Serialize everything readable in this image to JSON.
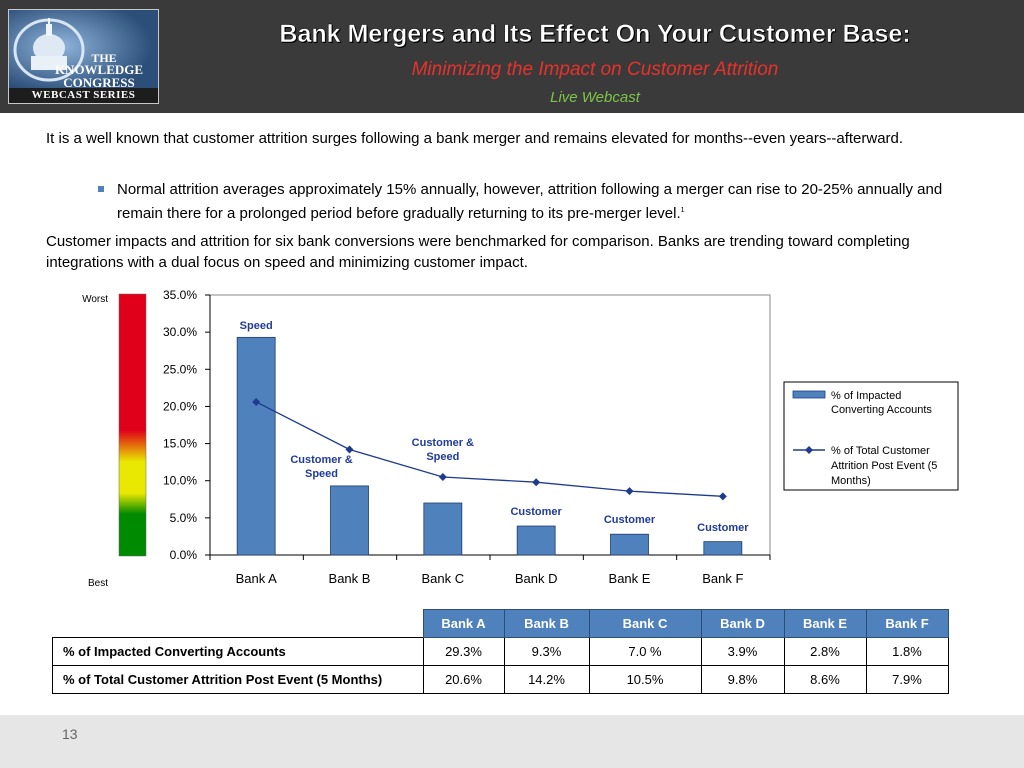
{
  "header": {
    "logo_text_line1": "THE",
    "logo_text_line2": "KNOWLEDGE",
    "logo_text_line3": "CONGRESS",
    "logo_series": "WEBCAST SERIES",
    "title": "Bank Mergers and Its Effect On Your Customer Base:",
    "subtitle": "Minimizing the Impact on Customer Attrition",
    "live": "Live Webcast",
    "colors": {
      "background": "#3a3a3a",
      "subtitle": "#e8312b",
      "live": "#7ec34a"
    }
  },
  "body": {
    "para1": "It is a well known that  customer attrition surges following a bank merger and remains elevated for months--even years--afterward.",
    "bullet1": "Normal attrition averages approximately 15% annually, however, attrition following a merger can rise to 20-25% annually and remain there for a prolonged period before gradually returning to its pre-merger level.",
    "bullet1_sup": "1",
    "para2": "Customer impacts and attrition for six bank conversions were benchmarked for comparison.  Banks are trending toward completing integrations with a dual focus on speed and minimizing customer impact."
  },
  "chart_data": {
    "type": "bar",
    "categories": [
      "Bank A",
      "Bank B",
      "Bank C",
      "Bank D",
      "Bank E",
      "Bank F"
    ],
    "series": [
      {
        "name": "% of Impacted Converting Accounts",
        "type": "bar",
        "color": "#4f81bd",
        "values": [
          29.3,
          9.3,
          7.0,
          3.9,
          2.8,
          1.8
        ]
      },
      {
        "name": "% of Total Customer Attrition Post Event (5 Months)",
        "type": "line",
        "color": "#1f3b8f",
        "values": [
          20.6,
          14.2,
          10.5,
          9.8,
          8.6,
          7.9
        ]
      }
    ],
    "ylim": [
      0,
      35
    ],
    "yticks": [
      "0.0%",
      "5.0%",
      "10.0%",
      "15.0%",
      "20.0%",
      "25.0%",
      "30.0%",
      "35.0%"
    ],
    "bar_annotations": [
      "Speed",
      "Customer & Speed",
      "Customer & Speed",
      "Customer",
      "Customer",
      "Customer"
    ],
    "legend_position": "right",
    "legend_labels": [
      "% of Impacted Converting Accounts",
      "% of Total Customer Attrition Post Event (5 Months)"
    ],
    "scale": {
      "top_label": "Worst",
      "bottom_label": "Best",
      "colors": [
        "#e0001a",
        "#e8e800",
        "#008a00"
      ]
    }
  },
  "table": {
    "headers": [
      "Bank A",
      "Bank B",
      "Bank C",
      "Bank D",
      "Bank E",
      "Bank F"
    ],
    "rows": [
      {
        "label": "% of Impacted Converting Accounts",
        "cells": [
          "29.3%",
          "9.3%",
          "7.0 %",
          "3.9%",
          "2.8%",
          "1.8%"
        ]
      },
      {
        "label": "% of Total Customer Attrition Post Event (5 Months)",
        "cells": [
          "20.6%",
          "14.2%",
          "10.5%",
          "9.8%",
          "8.6%",
          "7.9%"
        ]
      }
    ]
  },
  "footer": {
    "page_number": "13"
  }
}
